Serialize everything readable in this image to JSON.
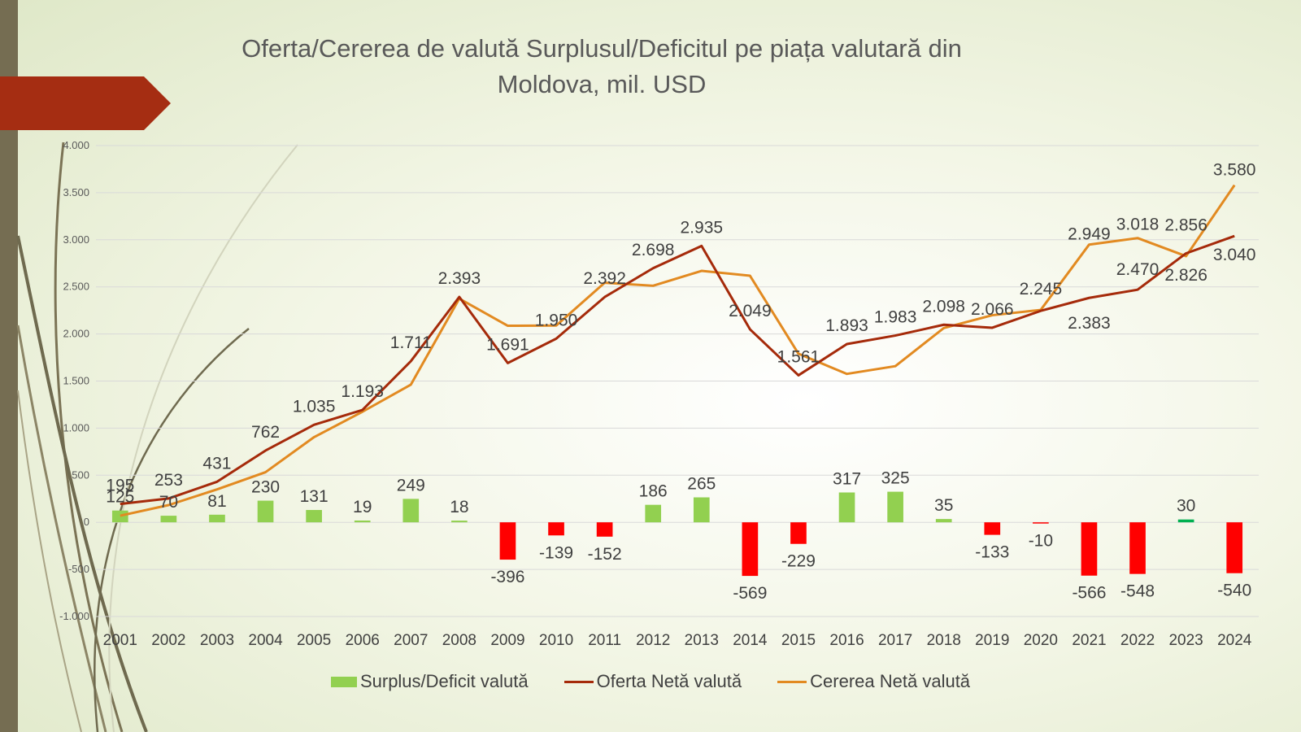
{
  "chart_data": {
    "type": "bar+line",
    "title_line1": "Oferta/Cererea de valută Surplusul/Deficitul pe piața valutară din",
    "title_line2": "Moldova, mil. USD",
    "categories": [
      "2001",
      "2002",
      "2003",
      "2004",
      "2005",
      "2006",
      "2007",
      "2008",
      "2009",
      "2010",
      "2011",
      "2012",
      "2013",
      "2014",
      "2015",
      "2016",
      "2017",
      "2018",
      "2019",
      "2020",
      "2021",
      "2022",
      "2023",
      "2024"
    ],
    "ylim": [
      -1000,
      4000
    ],
    "y_ticks": [
      {
        "value": -1000,
        "label": "-1.000"
      },
      {
        "value": -500,
        "label": "-500"
      },
      {
        "value": 0,
        "label": "0"
      },
      {
        "value": 500,
        "label": "500"
      },
      {
        "value": 1000,
        "label": "1.000"
      },
      {
        "value": 1500,
        "label": "1.500"
      },
      {
        "value": 2000,
        "label": "2.000"
      },
      {
        "value": 2500,
        "label": "2.500"
      },
      {
        "value": 3000,
        "label": "3.000"
      },
      {
        "value": 3500,
        "label": "3.500"
      },
      {
        "value": 4000,
        "label": "4.000"
      }
    ],
    "grid": true,
    "legend_position": "bottom",
    "series": [
      {
        "name": "Surplus/Deficit valută",
        "kind": "bar",
        "color_positive": "#92d050",
        "color_negative": "#ff0000",
        "values": [
          125,
          70,
          81,
          230,
          131,
          19,
          249,
          18,
          -396,
          -139,
          -152,
          186,
          265,
          -569,
          -229,
          317,
          325,
          35,
          -133,
          -10,
          -566,
          -548,
          30,
          -540
        ],
        "labels": [
          "125",
          "70",
          "81",
          "230",
          "131",
          "19",
          "249",
          "18",
          "-396",
          "-139",
          "-152",
          "186",
          "265",
          "-569",
          "-229",
          "317",
          "325",
          "35",
          "-133",
          "-10",
          "-566",
          "-548",
          "30",
          "-540"
        ]
      },
      {
        "name": "Oferta Netă valută",
        "kind": "line",
        "color": "#a52a0a",
        "values": [
          195,
          253,
          431,
          762,
          1035,
          1193,
          1711,
          2393,
          1691,
          1950,
          2392,
          2698,
          2935,
          2049,
          1561,
          1893,
          1983,
          2098,
          2066,
          2245,
          2383,
          2470,
          2856,
          3040
        ],
        "labels": [
          "195",
          "253",
          "431",
          "762",
          "1.035",
          "1.193",
          "1.711",
          "2.393",
          "1.691",
          "1.950",
          "2.392",
          "2.698",
          "2.935",
          "2.049",
          "1.561",
          "1.893",
          "1.983",
          "2.098",
          "2.066",
          "2.245",
          "2.383",
          "2.470",
          "2.856",
          "3.040"
        ]
      },
      {
        "name": "Cererea Netă valută",
        "kind": "line",
        "color": "#e28a21",
        "values": [
          70,
          183,
          350,
          532,
          904,
          1174,
          1462,
          2375,
          2087,
          2089,
          2544,
          2512,
          2670,
          2618,
          1790,
          1576,
          1658,
          2063,
          2199,
          2255,
          2949,
          3018,
          2826,
          3580
        ],
        "labels": [
          "2.949",
          "3.018",
          "2.826",
          "3.580"
        ],
        "label_indices": [
          20,
          21,
          22,
          23
        ]
      }
    ]
  }
}
